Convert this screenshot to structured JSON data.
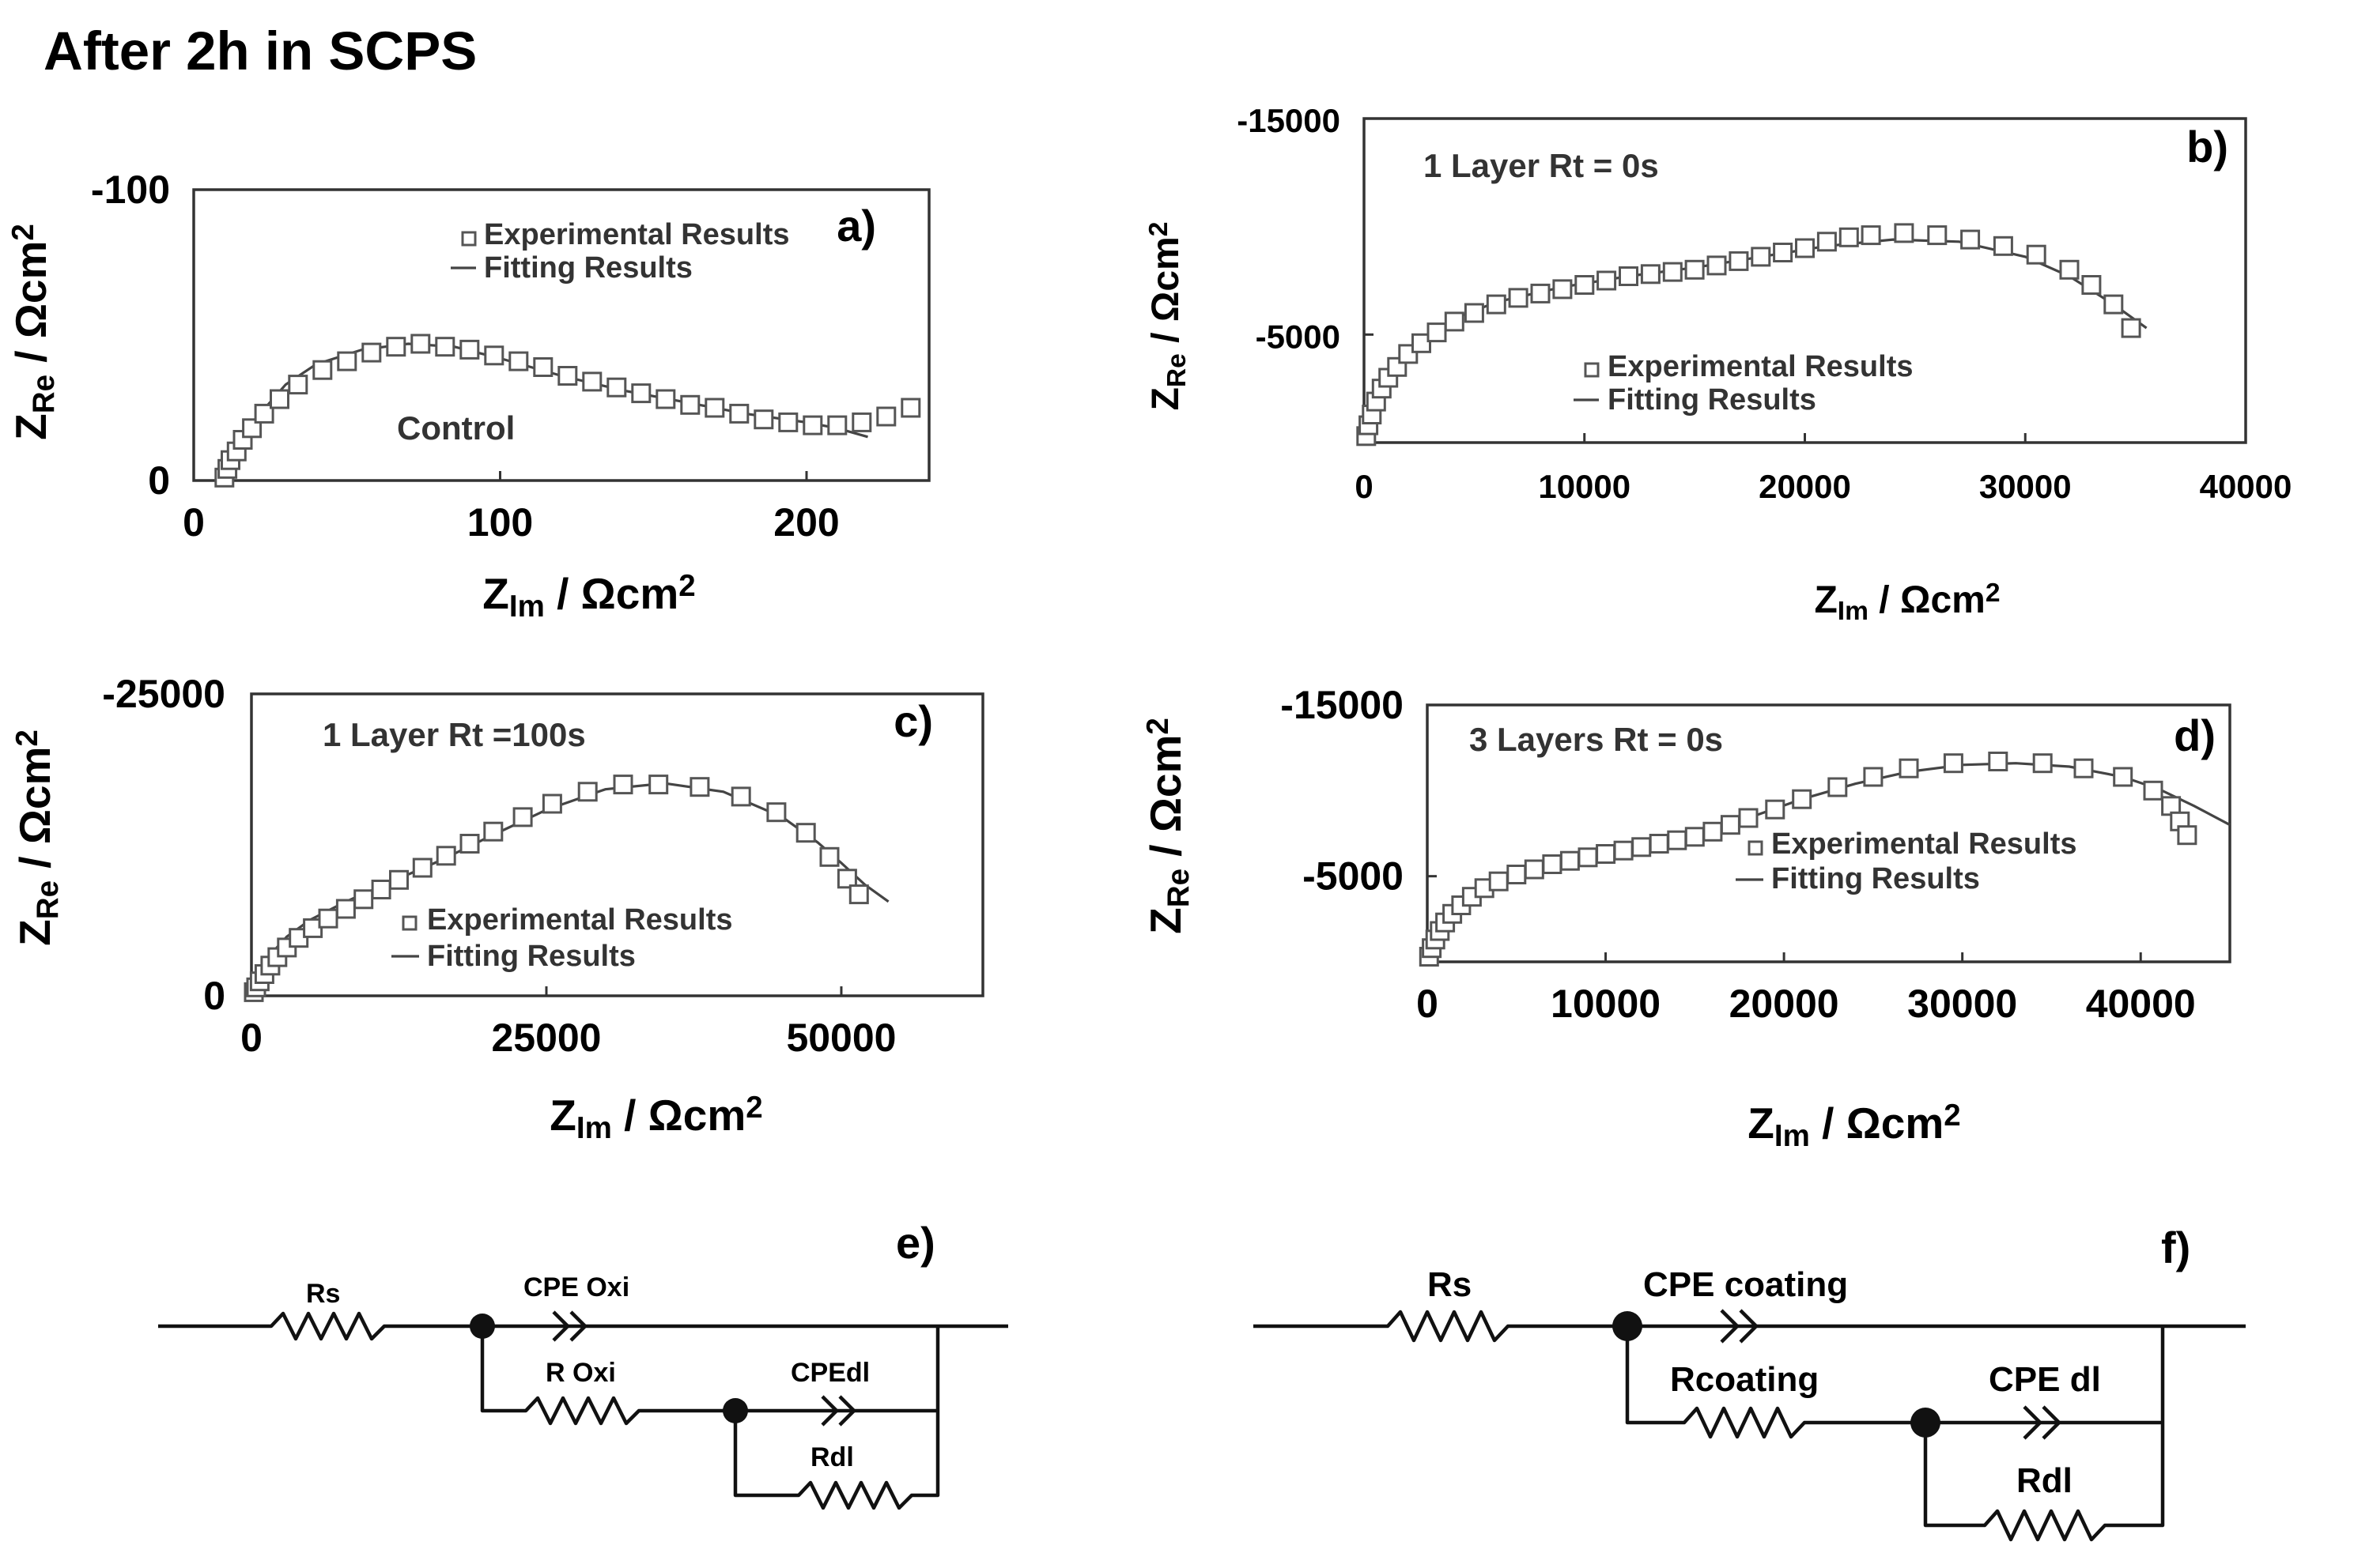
{
  "page_title": "After 2h in SCPS",
  "colors": {
    "axis": "#333333",
    "marker_edge": "#555555",
    "fit_line": "#444444",
    "wire": "#111111"
  },
  "chart_data": [
    {
      "panel": "a)",
      "type": "scatter",
      "xlabel": {
        "main": "Z",
        "sub": "Im",
        "unit": " / Ωcm",
        "sup": "2"
      },
      "ylabel": {
        "main": "Z",
        "sub": "Re",
        "unit": " / Ωcm",
        "sup": "2"
      },
      "xlim": [
        0,
        240
      ],
      "ylim": [
        0,
        -100
      ],
      "xticks": [
        0,
        100,
        200
      ],
      "xtick_labels": [
        "0",
        "100",
        "200"
      ],
      "yticks": [
        0,
        -100
      ],
      "ytick_labels": [
        "0",
        "-100"
      ],
      "legend": {
        "experimental": "Experimental Results",
        "fitting": "Fitting Results",
        "position": "top"
      },
      "annotation": "Control",
      "series": [
        {
          "role": "experimental",
          "marker": "square",
          "x": [
            10,
            11,
            12,
            14,
            16,
            19,
            23,
            28,
            34,
            42,
            50,
            58,
            66,
            74,
            82,
            90,
            98,
            106,
            114,
            122,
            130,
            138,
            146,
            154,
            162,
            170,
            178,
            186,
            194,
            202,
            210,
            218,
            226,
            234
          ],
          "y": [
            -1,
            -4,
            -7,
            -10,
            -14,
            -18,
            -23,
            -28,
            -33,
            -38,
            -41,
            -44,
            -46,
            -47,
            -46,
            -45,
            -43,
            -41,
            -39,
            -36,
            -34,
            -32,
            -30,
            -28,
            -26,
            -25,
            -23,
            -21,
            -20,
            -19,
            -19,
            -20,
            -22,
            -25
          ]
        },
        {
          "role": "fitting",
          "marker": "line",
          "x": [
            10,
            12,
            15,
            20,
            30,
            40,
            55,
            70,
            85,
            100,
            120,
            140,
            160,
            180,
            200,
            210,
            220
          ],
          "y": [
            0,
            -6,
            -13,
            -21,
            -33,
            -40,
            -45,
            -47,
            -46,
            -42,
            -36,
            -31,
            -27,
            -23,
            -20,
            -18,
            -15
          ]
        }
      ]
    },
    {
      "panel": "b)",
      "type": "scatter",
      "xlabel": {
        "main": "Z",
        "sub": "Im",
        "unit": " / Ωcm",
        "sup": "2"
      },
      "ylabel": {
        "main": "Z",
        "sub": "Re",
        "unit": " / Ωcm",
        "sup": "2"
      },
      "xlim": [
        0,
        40000
      ],
      "ylim": [
        0,
        -15000
      ],
      "xticks": [
        0,
        10000,
        20000,
        30000,
        40000
      ],
      "xtick_labels": [
        "0",
        "10000",
        "20000",
        "30000",
        "40000"
      ],
      "yticks": [
        -5000,
        -15000
      ],
      "ytick_labels": [
        "-5000",
        "-15000"
      ],
      "legend": {
        "experimental": "Experimental Results",
        "fitting": "Fitting Results",
        "position": "center"
      },
      "annotation": "1 Layer Rt = 0s",
      "series": [
        {
          "role": "experimental",
          "marker": "square",
          "x": [
            100,
            200,
            350,
            550,
            800,
            1100,
            1500,
            2000,
            2600,
            3300,
            4100,
            5000,
            6000,
            7000,
            8000,
            9000,
            10000,
            11000,
            12000,
            13000,
            14000,
            15000,
            16000,
            17000,
            18000,
            19000,
            20000,
            21000,
            22000,
            23000,
            24500,
            26000,
            27500,
            29000,
            30500,
            32000,
            33000,
            34000,
            34800
          ],
          "y": [
            -300,
            -800,
            -1300,
            -1900,
            -2500,
            -3000,
            -3500,
            -4100,
            -4600,
            -5100,
            -5600,
            -6000,
            -6400,
            -6700,
            -6900,
            -7100,
            -7300,
            -7500,
            -7700,
            -7800,
            -7900,
            -8000,
            -8200,
            -8400,
            -8600,
            -8800,
            -9000,
            -9300,
            -9500,
            -9600,
            -9700,
            -9600,
            -9400,
            -9100,
            -8700,
            -8000,
            -7300,
            -6400,
            -5300
          ]
        },
        {
          "role": "fitting",
          "marker": "line",
          "x": [
            0,
            300,
            800,
            1500,
            2500,
            4000,
            6000,
            9000,
            12000,
            15000,
            18000,
            21000,
            24000,
            27000,
            30000,
            32000,
            34000,
            35500
          ],
          "y": [
            0,
            -1200,
            -2500,
            -3700,
            -4700,
            -5700,
            -6500,
            -7200,
            -7700,
            -8100,
            -8600,
            -9100,
            -9400,
            -9300,
            -8600,
            -7700,
            -6400,
            -5300
          ]
        }
      ]
    },
    {
      "panel": "c)",
      "type": "scatter",
      "xlabel": {
        "main": "Z",
        "sub": "Im",
        "unit": " / Ωcm",
        "sup": "2"
      },
      "ylabel": {
        "main": "Z",
        "sub": "Re",
        "unit": " / Ωcm",
        "sup": "2"
      },
      "xlim": [
        0,
        62000
      ],
      "ylim": [
        0,
        -25000
      ],
      "xticks": [
        0,
        25000,
        50000
      ],
      "xtick_labels": [
        "0",
        "25000",
        "50000"
      ],
      "yticks": [
        0,
        -25000
      ],
      "ytick_labels": [
        "0",
        "-25000"
      ],
      "legend": {
        "experimental": "Experimental Results",
        "fitting": "Fitting Results",
        "position": "bottom"
      },
      "annotation": "1 Layer Rt =100s",
      "series": [
        {
          "role": "experimental",
          "marker": "square",
          "x": [
            200,
            400,
            700,
            1100,
            1600,
            2200,
            3000,
            4000,
            5200,
            6500,
            8000,
            9500,
            11000,
            12500,
            14500,
            16500,
            18500,
            20500,
            23000,
            25500,
            28500,
            31500,
            34500,
            38000,
            41500,
            44500,
            47000,
            49000,
            50500,
            51500
          ],
          "y": [
            -300,
            -700,
            -1200,
            -1800,
            -2500,
            -3200,
            -4000,
            -4800,
            -5600,
            -6400,
            -7200,
            -8000,
            -8800,
            -9600,
            -10600,
            -11600,
            -12600,
            -13600,
            -14800,
            -15900,
            -16900,
            -17500,
            -17500,
            -17300,
            -16500,
            -15200,
            -13500,
            -11500,
            -9700,
            -8400
          ]
        },
        {
          "role": "fitting",
          "marker": "line",
          "x": [
            0,
            500,
            1500,
            3000,
            5000,
            8000,
            12000,
            16000,
            20000,
            25000,
            30000,
            35000,
            40000,
            45000,
            48000,
            50000,
            52000,
            54000
          ],
          "y": [
            0,
            -1700,
            -3300,
            -4900,
            -6300,
            -7800,
            -9500,
            -11200,
            -13100,
            -15400,
            -17100,
            -17600,
            -16900,
            -14800,
            -12700,
            -11000,
            -9200,
            -7800
          ]
        }
      ]
    },
    {
      "panel": "d)",
      "type": "scatter",
      "xlabel": {
        "main": "Z",
        "sub": "Im",
        "unit": " / Ωcm",
        "sup": "2"
      },
      "ylabel": {
        "main": "Z",
        "sub": "Re",
        "unit": " / Ωcm",
        "sup": "2"
      },
      "xlim": [
        0,
        45000
      ],
      "ylim": [
        0,
        -15000
      ],
      "xticks": [
        0,
        10000,
        20000,
        30000,
        40000
      ],
      "xtick_labels": [
        "0",
        "10000",
        "20000",
        "30000",
        "40000"
      ],
      "yticks": [
        -5000,
        -15000
      ],
      "ytick_labels": [
        "-5000",
        "-15000"
      ],
      "legend": {
        "experimental": "Experimental Results",
        "fitting": "Fitting Results",
        "position": "center"
      },
      "annotation": "3 Layers Rt = 0s",
      "series": [
        {
          "role": "experimental",
          "marker": "square",
          "x": [
            100,
            250,
            450,
            700,
            1000,
            1400,
            1900,
            2500,
            3200,
            4000,
            5000,
            6000,
            7000,
            8000,
            9000,
            10000,
            11000,
            12000,
            13000,
            14000,
            15000,
            16000,
            17000,
            18000,
            19500,
            21000,
            23000,
            25000,
            27000,
            29500,
            32000,
            34500,
            36800,
            39000,
            40700,
            41700,
            42200,
            42600
          ],
          "y": [
            -300,
            -800,
            -1300,
            -1800,
            -2300,
            -2800,
            -3300,
            -3800,
            -4300,
            -4700,
            -5100,
            -5400,
            -5700,
            -5900,
            -6100,
            -6300,
            -6500,
            -6700,
            -6900,
            -7100,
            -7300,
            -7600,
            -8000,
            -8400,
            -8900,
            -9500,
            -10200,
            -10800,
            -11300,
            -11600,
            -11700,
            -11600,
            -11300,
            -10800,
            -10000,
            -9100,
            -8200,
            -7400
          ]
        },
        {
          "role": "fitting",
          "marker": "line",
          "x": [
            0,
            300,
            800,
            1500,
            2500,
            4000,
            6000,
            9000,
            12000,
            15000,
            18000,
            21000,
            24000,
            27000,
            30000,
            33000,
            36000,
            39000,
            41000,
            43000,
            45000
          ],
          "y": [
            0,
            -1000,
            -2100,
            -3100,
            -3900,
            -4700,
            -5400,
            -6100,
            -6700,
            -7400,
            -8400,
            -9500,
            -10400,
            -11100,
            -11500,
            -11600,
            -11400,
            -10800,
            -10100,
            -9100,
            -8000
          ]
        }
      ]
    }
  ],
  "circuits": [
    {
      "label": "e)",
      "rs": "Rs",
      "cpe_top": "CPE Oxi",
      "r_mid": "R Oxi",
      "cpe_inner": "CPEdl",
      "r_inner": "Rdl"
    },
    {
      "label": "f)",
      "rs": "Rs",
      "cpe_top": "CPE coating",
      "r_mid": "Rcoating",
      "cpe_inner": "CPE dl",
      "r_inner": "Rdl"
    }
  ]
}
